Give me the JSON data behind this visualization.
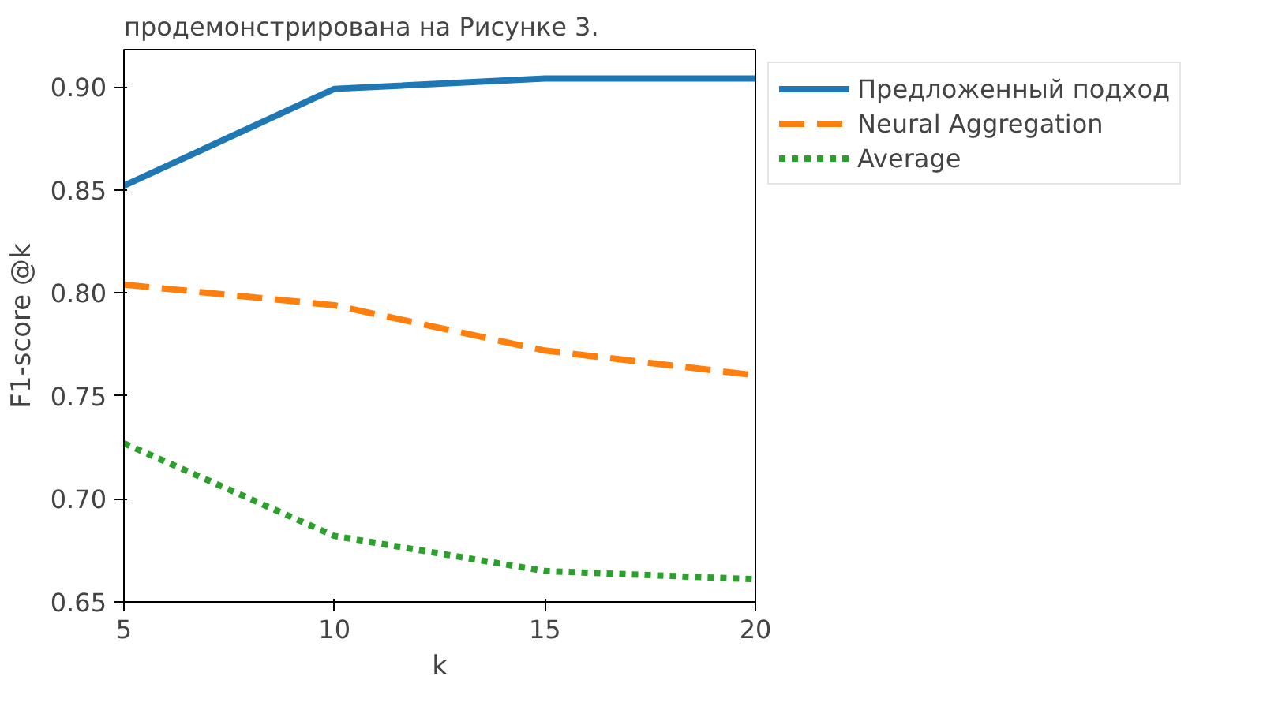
{
  "chart_data": {
    "type": "line",
    "xlabel": "k",
    "ylabel": "F1-score @k",
    "annotations": [
      "продемонстрирована на Рисунке 3."
    ],
    "x": [
      5,
      10,
      15,
      20
    ],
    "series": [
      {
        "name": "Предложенный подход",
        "color": "#1f77b4",
        "line_style": "solid",
        "values": [
          0.852,
          0.899,
          0.904,
          0.904
        ]
      },
      {
        "name": "Neural Aggregation",
        "color": "#ff7f0e",
        "line_style": "dashed",
        "values": [
          0.804,
          0.794,
          0.772,
          0.76
        ]
      },
      {
        "name": "Average",
        "color": "#2ca02c",
        "line_style": "dotted",
        "values": [
          0.727,
          0.682,
          0.665,
          0.661
        ]
      }
    ],
    "xlim": [
      5,
      20
    ],
    "ylim": [
      0.65,
      0.918
    ],
    "xticks": [
      5,
      10,
      15,
      20
    ],
    "yticks": [
      0.65,
      {
        "value": 0.7,
        "label": "0.70"
      },
      0.75,
      {
        "value": 0.8,
        "label": "0.80"
      },
      0.85,
      {
        "value": 0.9,
        "label": "0.90"
      }
    ],
    "grid": false,
    "legend": "right",
    "marker": "none"
  }
}
